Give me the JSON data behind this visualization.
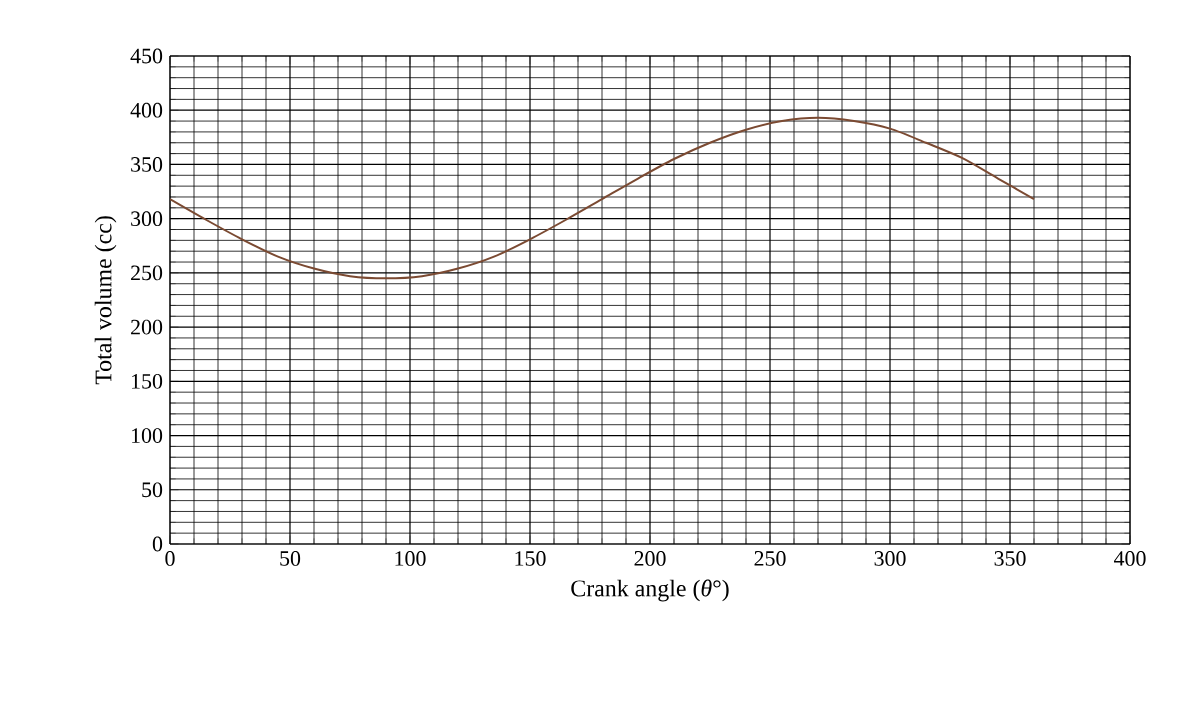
{
  "chart_data": {
    "type": "line",
    "xlabel": "Crank angle (*θ*°)",
    "ylabel": "Total volume (cc)",
    "x": [
      0,
      15,
      30,
      45,
      60,
      75,
      90,
      105,
      120,
      135,
      150,
      165,
      180,
      195,
      210,
      225,
      240,
      255,
      270,
      285,
      300,
      315,
      330,
      345,
      360
    ],
    "series": [
      {
        "color": "#7b4a32",
        "values": [
          318,
          299,
          281,
          265,
          254,
          247,
          245,
          247,
          254,
          265,
          281,
          299,
          318,
          337,
          355,
          370,
          382,
          390,
          393,
          390,
          383,
          370,
          356,
          337,
          318
        ]
      }
    ],
    "xlim": [
      0,
      400
    ],
    "ylim": [
      0,
      450
    ],
    "xticks": [
      0,
      50,
      100,
      150,
      200,
      250,
      300,
      350,
      400
    ],
    "yticks": [
      0,
      50,
      100,
      150,
      200,
      250,
      300,
      350,
      400,
      450
    ],
    "grid": true,
    "marker": "none",
    "line_style": "solid"
  }
}
